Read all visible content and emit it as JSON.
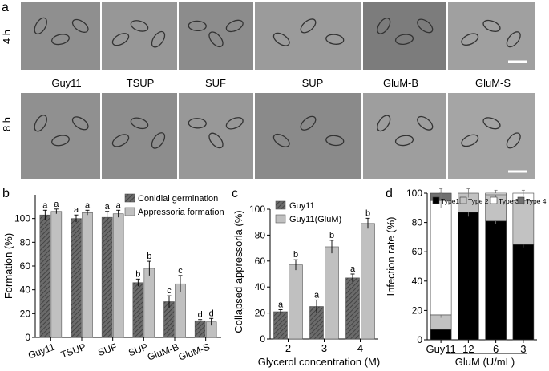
{
  "panel_a": {
    "letter": "a",
    "row_labels": [
      "4 h",
      "8 h"
    ],
    "strain_labels": [
      "Guy11",
      "TSUP",
      "SUF",
      "SUP",
      "GluM-B",
      "GluM-S"
    ],
    "panel_shades_4h": [
      "#8f8f8f",
      "#979797",
      "#8c8c8c",
      "#9b9b9b",
      "#7c7c7c",
      "#a0a0a0"
    ],
    "panel_shades_8h": [
      "#909090",
      "#8d8d8d",
      "#989898",
      "#8a8a8a",
      "#9e9e9e",
      "#a5a5a5"
    ]
  },
  "panel_b": {
    "letter": "b",
    "chart_data": {
      "type": "bar",
      "categories": [
        "Guy11",
        "TSUP",
        "SUF",
        "SUP",
        "GluM-B",
        "GluM-S"
      ],
      "series": [
        {
          "name": "Conidial germination",
          "values": [
            103,
            100,
            101,
            46,
            30,
            14
          ],
          "errors": [
            4,
            3,
            5,
            3,
            5,
            1
          ],
          "letters": [
            "a",
            "a",
            "a",
            "b",
            "c",
            "d"
          ],
          "color": "#6b6b6b",
          "pattern": "hatched"
        },
        {
          "name": "Appressoria formation",
          "values": [
            106,
            105,
            104,
            58,
            45,
            13
          ],
          "errors": [
            2,
            2,
            3,
            6,
            7,
            3
          ],
          "letters": [
            "a",
            "a",
            "a",
            "b",
            "c",
            "d"
          ],
          "color": "#c0c0c0",
          "pattern": "solid"
        }
      ],
      "xlabel": "",
      "ylabel": "Formation (%)",
      "ylim": [
        0,
        120
      ],
      "yticks": [
        0,
        20,
        40,
        60,
        80,
        100
      ],
      "legend": "top-right"
    }
  },
  "panel_c": {
    "letter": "c",
    "chart_data": {
      "type": "bar",
      "categories": [
        "2",
        "3",
        "4"
      ],
      "series": [
        {
          "name": "Guy11",
          "values": [
            21,
            25,
            47
          ],
          "errors": [
            1.5,
            5,
            3
          ],
          "letters": [
            "a",
            "a",
            "a"
          ],
          "color": "#6b6b6b",
          "pattern": "hatched"
        },
        {
          "name": "Guy11(GluM)",
          "values": [
            57,
            71,
            89
          ],
          "errors": [
            4,
            5,
            4
          ],
          "letters": [
            "b",
            "b",
            "b"
          ],
          "color": "#c0c0c0",
          "pattern": "solid"
        }
      ],
      "xlabel": "Glycerol concentration (M)",
      "ylabel": "Collapsed appressoria (%)",
      "ylim": [
        0,
        100
      ],
      "yticks": [
        0,
        20,
        40,
        60,
        80,
        100
      ],
      "legend": "top-left"
    }
  },
  "panel_d": {
    "letter": "d",
    "chart_data": {
      "type": "bar",
      "stacked": true,
      "categories": [
        "Guy11",
        "12",
        "6",
        "3"
      ],
      "group_label": "GluM (U/mL)",
      "series": [
        {
          "name": "Type1",
          "values": [
            7,
            87,
            81,
            65
          ],
          "errors": [
            0,
            3,
            2,
            2
          ],
          "color": "#000000"
        },
        {
          "name": "Type 2",
          "values": [
            10,
            13,
            18,
            30
          ],
          "errors": [
            2,
            3,
            3,
            3
          ],
          "color": "#c2c2c2"
        },
        {
          "name": "Type 3",
          "values": [
            78,
            0,
            1,
            5
          ],
          "errors": [
            5,
            0,
            0,
            2
          ],
          "color": "#ffffff"
        },
        {
          "name": "Type 4",
          "values": [
            5,
            0,
            0,
            0
          ],
          "errors": [
            3,
            0,
            0,
            0
          ],
          "color": "#707070"
        }
      ],
      "xlabel": "",
      "ylabel": "Infection rate (%)",
      "ylim": [
        0,
        100
      ],
      "yticks": [
        0,
        20,
        40,
        60,
        80,
        100
      ],
      "legend": "top"
    }
  }
}
